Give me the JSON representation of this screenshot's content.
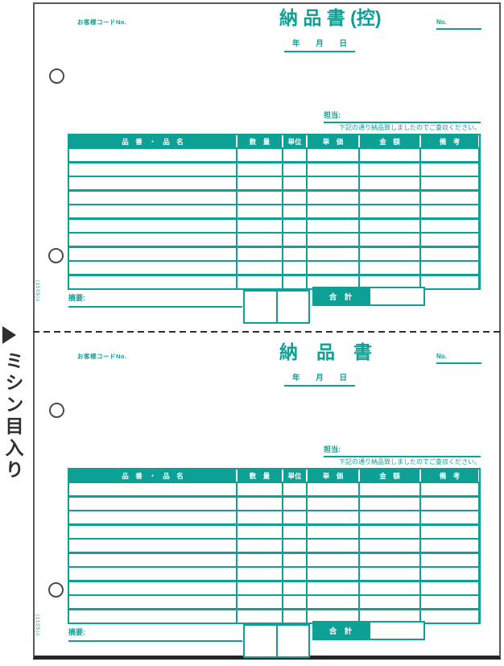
{
  "sheet": {
    "accent_color": "#0da094",
    "margin_note": "ミシン目入り"
  },
  "forms": [
    {
      "customer_code_label": "お客様コードNo.",
      "title": "納 品 書 (控)",
      "no_label": "No.",
      "date_labels": [
        "年",
        "月",
        "日"
      ],
      "staff_label": "担当:",
      "notice": "下記の通り納品致しましたのでご査収ください。",
      "table": {
        "columns": [
          "品　番　・　品　名",
          "数　量",
          "単位",
          "単　価",
          "金　額",
          "備　考"
        ],
        "empty_rows": 10
      },
      "summary_label": "摘要:",
      "total_label": "合　計",
      "edge_code": "(1105)≡"
    },
    {
      "customer_code_label": "お客様コードNo.",
      "title": "納　品　書",
      "no_label": "No.",
      "date_labels": [
        "年",
        "月",
        "日"
      ],
      "staff_label": "担当:",
      "notice": "下記の通り納品致しましたのでご査収ください。",
      "table": {
        "columns": [
          "品　番　・　品　名",
          "数　量",
          "単位",
          "単　価",
          "金　額",
          "備　考"
        ],
        "empty_rows": 10
      },
      "summary_label": "摘要:",
      "total_label": "合　計",
      "edge_code": "(1105)≡"
    }
  ]
}
